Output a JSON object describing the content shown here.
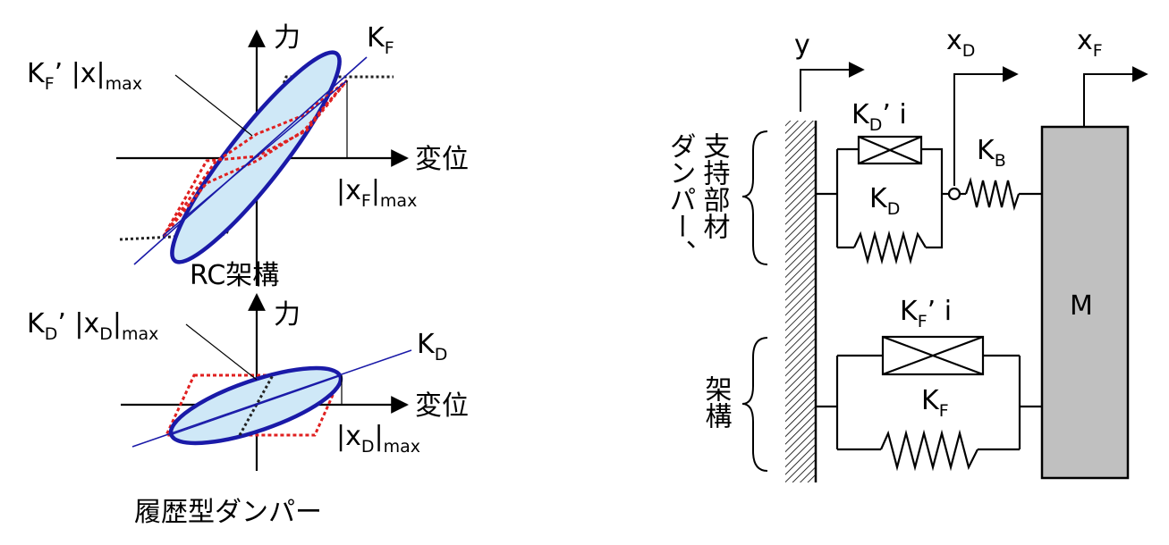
{
  "top_plot": {
    "y_axis_label": "力",
    "x_axis_label": "変位",
    "k_line_label": "K",
    "k_line_sub": "F",
    "secant_label_main": "K",
    "secant_label_sub": "F",
    "secant_label_tail": "’ |x|",
    "secant_label_max": "max",
    "x_max_label": "|x",
    "x_max_sub": "F",
    "x_max_tail": "|",
    "x_max_max": "max",
    "caption": "RC架構"
  },
  "bottom_plot": {
    "y_axis_label": "力",
    "x_axis_label": "変位",
    "k_line_label": "K",
    "k_line_sub": "D",
    "secant_label_main": "K",
    "secant_label_sub": "D",
    "secant_label_mid": "’ |x",
    "secant_label_sub2": "D",
    "secant_label_tail": "|",
    "secant_label_max": "max",
    "x_max_label": "|x",
    "x_max_sub": "D",
    "x_max_tail": "|",
    "x_max_max": "max",
    "caption": "履歴型ダンパー"
  },
  "model": {
    "y_label": "y",
    "xd_label": "x",
    "xd_sub": "D",
    "xf_label": "x",
    "xf_sub": "F",
    "damper_group_line1": "ダンパー、",
    "damper_group_line2": "支持部材",
    "frame_group": "架構",
    "kdi_main": "K",
    "kdi_sub": "D",
    "kdi_tail": "’ i",
    "kd_main": "K",
    "kd_sub": "D",
    "kb_main": "K",
    "kb_sub": "B",
    "kfi_main": "K",
    "kfi_sub": "F",
    "kfi_tail": "’ i",
    "kf_main": "K",
    "kf_sub": "F",
    "mass_label": "M"
  },
  "colors": {
    "loop_stroke": "#1a1aa8",
    "loop_fill": "#cfe8f7",
    "dotted_red": "#e02020",
    "mass_fill": "#c0c0c0"
  }
}
